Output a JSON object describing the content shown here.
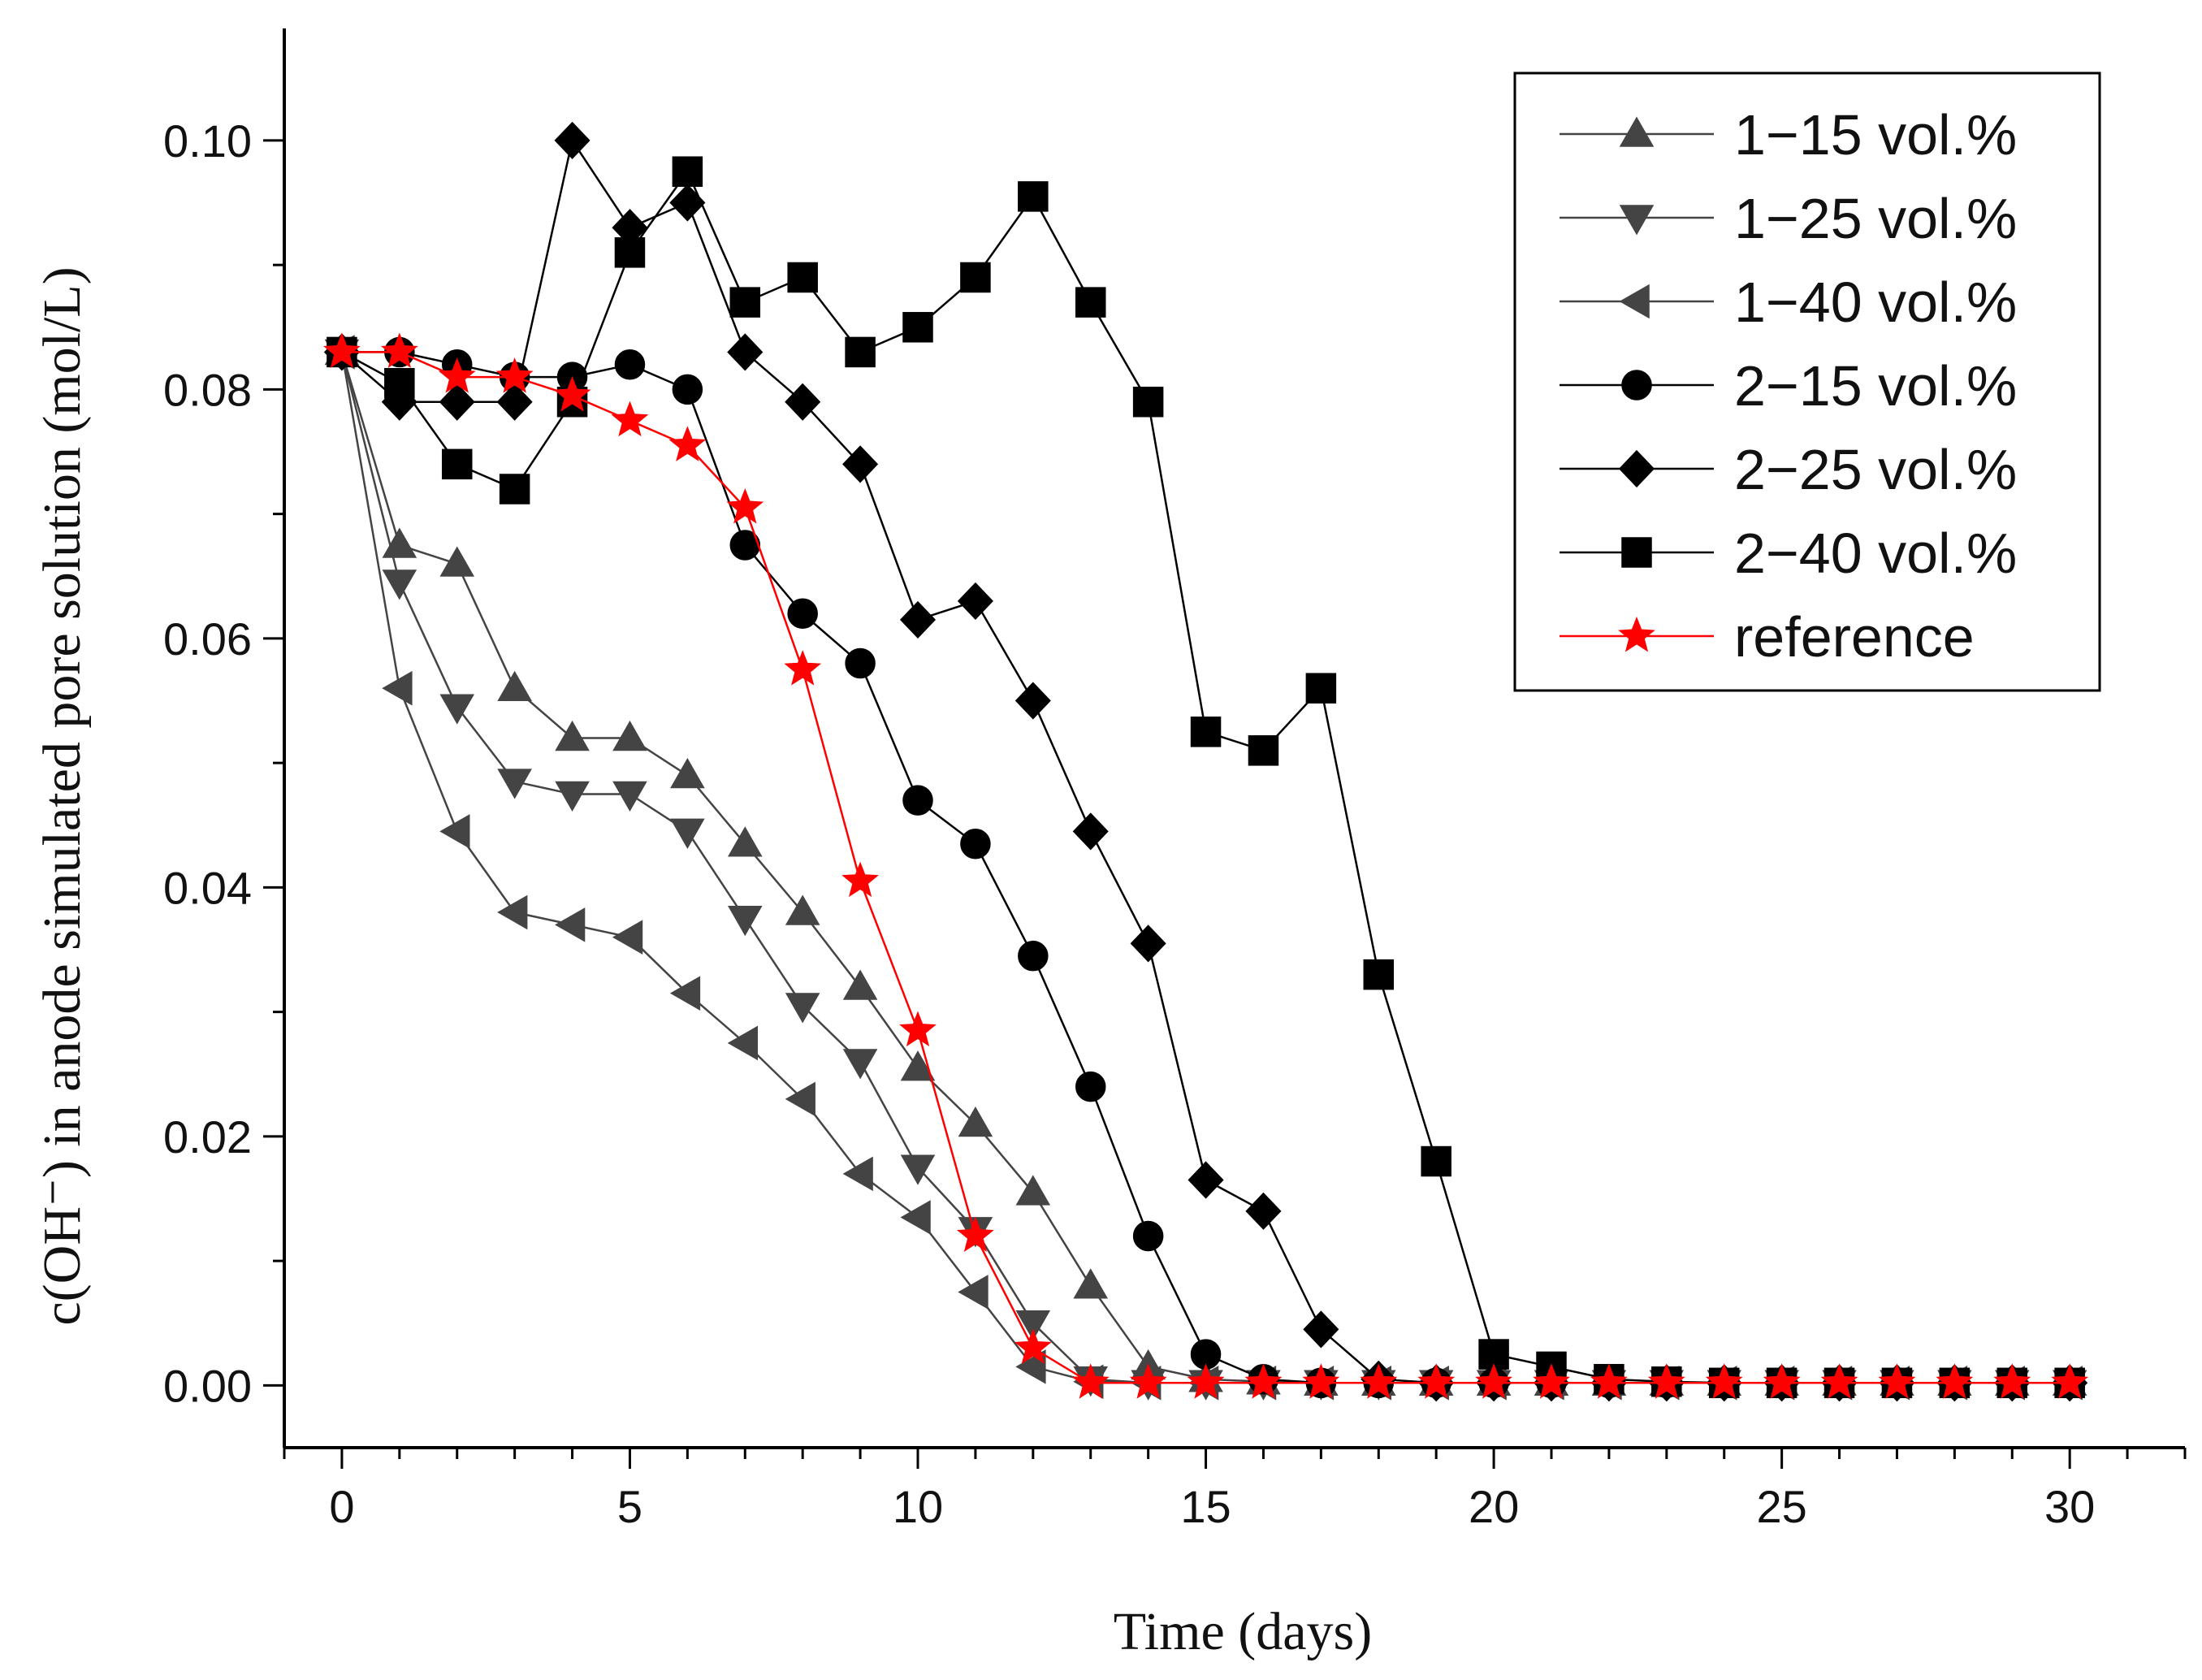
{
  "chart_data": {
    "type": "line",
    "title": "",
    "xlabel": "Time (days)",
    "ylabel": "c(OH⁻) in anode simulated pore solution (mol/L)",
    "xlim": [
      -1,
      32
    ],
    "ylim": [
      -0.005,
      0.109
    ],
    "x_ticks": [
      0,
      5,
      10,
      15,
      20,
      25,
      30
    ],
    "x_tick_labels": [
      "0",
      "5",
      "10",
      "15",
      "20",
      "25",
      "30"
    ],
    "y_ticks": [
      0.0,
      0.02,
      0.04,
      0.06,
      0.08,
      0.1
    ],
    "y_tick_labels": [
      "0.00",
      "0.02",
      "0.04",
      "0.06",
      "0.08",
      "0.10"
    ],
    "grid": false,
    "legend_position": "top-right",
    "series": [
      {
        "name": "1−15 vol.%",
        "marker": "triangle-up",
        "color": "#444444",
        "x": [
          0,
          1,
          2,
          3,
          4,
          5,
          6,
          7,
          8,
          9,
          10,
          11,
          12,
          13,
          14,
          15,
          16,
          17,
          18,
          19,
          20,
          21,
          22,
          23,
          24,
          25,
          26,
          27,
          28,
          29,
          30
        ],
        "y": [
          0.083,
          0.0675,
          0.066,
          0.056,
          0.052,
          0.052,
          0.049,
          0.0435,
          0.038,
          0.032,
          0.0255,
          0.021,
          0.0155,
          0.008,
          0.0015,
          0.0005,
          0.0003,
          0.0002,
          0.0002,
          0.0002,
          0.0002,
          0.0002,
          0.0002,
          0.0002,
          0.0002,
          0.0002,
          0.0002,
          0.0002,
          0.0002,
          0.0002,
          0.0002
        ]
      },
      {
        "name": "1−25 vol.%",
        "marker": "triangle-down",
        "color": "#444444",
        "x": [
          0,
          1,
          2,
          3,
          4,
          5,
          6,
          7,
          8,
          9,
          10,
          11,
          12,
          13,
          14,
          15,
          16,
          17,
          18,
          19,
          20,
          21,
          22,
          23,
          24,
          25,
          26,
          27,
          28,
          29,
          30
        ],
        "y": [
          0.083,
          0.0645,
          0.0545,
          0.0485,
          0.0475,
          0.0475,
          0.0445,
          0.0375,
          0.0305,
          0.026,
          0.0175,
          0.0125,
          0.005,
          0.0005,
          0.0002,
          0.0002,
          0.0002,
          0.0002,
          0.0002,
          0.0002,
          0.0002,
          0.0002,
          0.0002,
          0.0002,
          0.0002,
          0.0002,
          0.0002,
          0.0002,
          0.0002,
          0.0002,
          0.0002
        ]
      },
      {
        "name": "1−40 vol.%",
        "marker": "triangle-left",
        "color": "#444444",
        "x": [
          0,
          1,
          2,
          3,
          4,
          5,
          6,
          7,
          8,
          9,
          10,
          11,
          12,
          13,
          14,
          15,
          16,
          17,
          18,
          19,
          20,
          21,
          22,
          23,
          24,
          25,
          26,
          27,
          28,
          29,
          30
        ],
        "y": [
          0.083,
          0.056,
          0.0445,
          0.038,
          0.037,
          0.036,
          0.0315,
          0.0275,
          0.023,
          0.017,
          0.0135,
          0.0075,
          0.0015,
          0.0003,
          0.0002,
          0.0002,
          0.0002,
          0.0002,
          0.0002,
          0.0002,
          0.0002,
          0.0002,
          0.0002,
          0.0002,
          0.0002,
          0.0002,
          0.0002,
          0.0002,
          0.0002,
          0.0002,
          0.0002
        ]
      },
      {
        "name": "2−15 vol.%",
        "marker": "circle",
        "color": "#000000",
        "x": [
          0,
          1,
          2,
          3,
          4,
          5,
          6,
          7,
          8,
          9,
          10,
          11,
          12,
          13,
          14,
          15,
          16,
          17,
          18,
          19,
          20,
          21,
          22,
          23,
          24,
          25,
          26,
          27,
          28,
          29,
          30
        ],
        "y": [
          0.083,
          0.083,
          0.082,
          0.081,
          0.081,
          0.082,
          0.08,
          0.0675,
          0.062,
          0.058,
          0.047,
          0.0435,
          0.0345,
          0.024,
          0.012,
          0.0025,
          0.0005,
          0.0002,
          0.0002,
          0.0002,
          0.0002,
          0.0002,
          0.0002,
          0.0002,
          0.0002,
          0.0002,
          0.0002,
          0.0002,
          0.0002,
          0.0002,
          0.0002
        ]
      },
      {
        "name": "2−25 vol.%",
        "marker": "diamond",
        "color": "#000000",
        "x": [
          0,
          1,
          2,
          3,
          4,
          5,
          6,
          7,
          8,
          9,
          10,
          11,
          12,
          13,
          14,
          15,
          16,
          17,
          18,
          19,
          20,
          21,
          22,
          23,
          24,
          25,
          26,
          27,
          28,
          29,
          30
        ],
        "y": [
          0.083,
          0.079,
          0.079,
          0.079,
          0.1,
          0.093,
          0.095,
          0.083,
          0.079,
          0.074,
          0.0615,
          0.063,
          0.055,
          0.0445,
          0.0355,
          0.0165,
          0.014,
          0.0045,
          0.0005,
          0.0002,
          0.0002,
          0.0002,
          0.0002,
          0.0002,
          0.0002,
          0.0002,
          0.0002,
          0.0002,
          0.0002,
          0.0002,
          0.0002
        ]
      },
      {
        "name": "2−40 vol.%",
        "marker": "square",
        "color": "#000000",
        "x": [
          0,
          1,
          2,
          3,
          4,
          5,
          6,
          7,
          8,
          9,
          10,
          11,
          12,
          13,
          14,
          15,
          16,
          17,
          18,
          19,
          20,
          21,
          22,
          23,
          24,
          25,
          26,
          27,
          28,
          29,
          30
        ],
        "y": [
          0.083,
          0.0805,
          0.074,
          0.072,
          0.079,
          0.091,
          0.0975,
          0.087,
          0.089,
          0.083,
          0.085,
          0.089,
          0.0955,
          0.087,
          0.079,
          0.0525,
          0.051,
          0.056,
          0.033,
          0.018,
          0.0025,
          0.0015,
          0.0005,
          0.0003,
          0.0002,
          0.0002,
          0.0002,
          0.0002,
          0.0002,
          0.0002,
          0.0002
        ]
      },
      {
        "name": "reference",
        "marker": "star",
        "color": "#ff0000",
        "x": [
          0,
          1,
          2,
          3,
          4,
          5,
          6,
          7,
          8,
          9,
          10,
          11,
          12,
          13,
          14,
          15,
          16,
          17,
          18,
          19,
          20,
          21,
          22,
          23,
          24,
          25,
          26,
          27,
          28,
          29,
          30
        ],
        "y": [
          0.083,
          0.083,
          0.081,
          0.081,
          0.0795,
          0.0775,
          0.0755,
          0.0705,
          0.0575,
          0.0405,
          0.0285,
          0.012,
          0.003,
          0.0002,
          0.0002,
          0.0002,
          0.0002,
          0.0002,
          0.0002,
          0.0002,
          0.0002,
          0.0002,
          0.0002,
          0.0002,
          0.0002,
          0.0002,
          0.0002,
          0.0002,
          0.0002,
          0.0002,
          0.0002
        ]
      }
    ]
  }
}
